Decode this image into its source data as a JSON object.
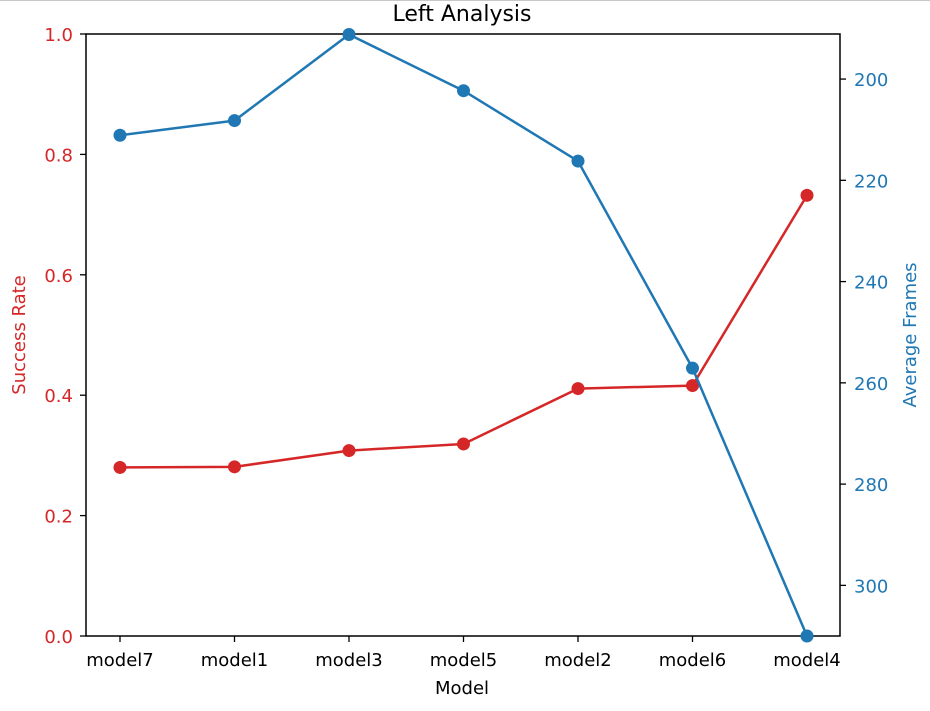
{
  "chart_data": {
    "type": "line",
    "title": "Left Analysis",
    "xlabel": "Model",
    "categories": [
      "model7",
      "model1",
      "model3",
      "model5",
      "model2",
      "model6",
      "model4"
    ],
    "y_left": {
      "label": "Success Rate",
      "color": "#d62728",
      "ylim": [
        0.0,
        1.0
      ],
      "ticks": [
        0.0,
        0.2,
        0.4,
        0.6,
        0.8,
        1.0
      ],
      "tick_labels": [
        "0.0",
        "0.2",
        "0.4",
        "0.6",
        "0.8",
        "1.0"
      ]
    },
    "y_right": {
      "label": "Average Frames",
      "color": "#1f77b4",
      "inverted": true,
      "ylim": [
        191.1,
        310.0
      ],
      "ticks": [
        200,
        220,
        240,
        260,
        280,
        300
      ],
      "tick_labels": [
        "200",
        "220",
        "240",
        "260",
        "280",
        "300"
      ]
    },
    "series": [
      {
        "axis": "left",
        "color": "#d62728",
        "values": [
          0.28,
          0.281,
          0.308,
          0.319,
          0.411,
          0.416,
          0.732
        ]
      },
      {
        "axis": "right",
        "color": "#1f77b4",
        "values": [
          211.1,
          208.2,
          191.2,
          202.3,
          216.2,
          257.1,
          310.0
        ]
      }
    ],
    "grid": false,
    "legend": "none"
  }
}
